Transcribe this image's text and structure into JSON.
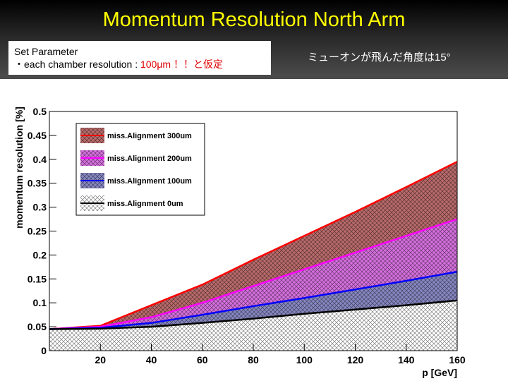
{
  "slide": {
    "title": "Momentum Resolution North Arm",
    "param_heading": "Set Parameter",
    "param_prefix": "・each chamber resolution : ",
    "param_highlight": "100μm ！！と仮定",
    "note": "ミューオンが飛んだ角度は15°"
  },
  "chart_data": {
    "type": "line",
    "xlabel": "p [GeV]",
    "ylabel": "momentum resolution [%]",
    "x": [
      0,
      20,
      40,
      60,
      80,
      100,
      120,
      140,
      160
    ],
    "series": [
      {
        "name": "miss.Alignment 300um",
        "color": "#ff0000",
        "fill_color": "#b86a6a",
        "values": [
          0.045,
          0.052,
          0.095,
          0.138,
          0.19,
          0.24,
          0.29,
          0.342,
          0.395
        ]
      },
      {
        "name": "miss.Alignment 200um",
        "color": "#ff00ff",
        "fill_color": "#d36fdc",
        "values": [
          0.045,
          0.05,
          0.07,
          0.1,
          0.135,
          0.17,
          0.205,
          0.24,
          0.275
        ]
      },
      {
        "name": "miss.Alignment 100um",
        "color": "#0000ff",
        "fill_color": "#8686c0",
        "values": [
          0.045,
          0.048,
          0.058,
          0.075,
          0.093,
          0.11,
          0.128,
          0.146,
          0.165
        ]
      },
      {
        "name": "miss.Alignment 0um",
        "color": "#000000",
        "fill_color": "#ffffff",
        "values": [
          0.045,
          0.046,
          0.05,
          0.058,
          0.067,
          0.077,
          0.086,
          0.095,
          0.105
        ]
      }
    ],
    "xlim": [
      0,
      160
    ],
    "xticks": [
      20,
      40,
      60,
      80,
      100,
      120,
      140,
      160
    ],
    "ylim": [
      0,
      0.5
    ],
    "yticks": [
      0,
      0.05,
      0.1,
      0.15,
      0.2,
      0.25,
      0.3,
      0.35,
      0.4,
      0.45,
      0.5
    ],
    "legend": "upper-left"
  }
}
